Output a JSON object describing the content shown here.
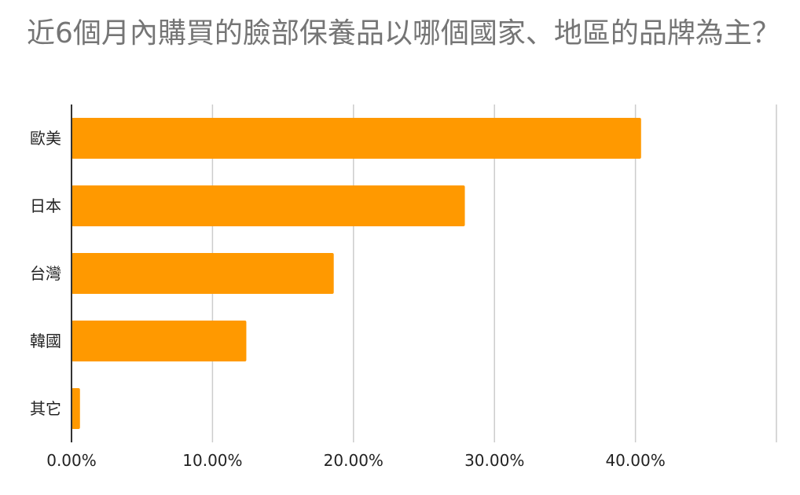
{
  "chart_data": {
    "type": "bar",
    "orientation": "horizontal",
    "title": "近6個月內購買的臉部保養品以哪個國家、地區的品牌為主？",
    "categories": [
      "歐美",
      "日本",
      "台灣",
      "韓國",
      "其它"
    ],
    "series": [
      {
        "values": [
          40.4,
          27.9,
          18.6,
          12.4,
          0.6
        ]
      }
    ],
    "xlim": [
      0,
      50
    ],
    "xticks": [
      0,
      10,
      20,
      30,
      40
    ],
    "xtick_labels": [
      "0.00%",
      "10.00%",
      "20.00%",
      "30.00%",
      "40.00%"
    ],
    "xlabel": "",
    "ylabel": "",
    "grid": true,
    "legend": "none",
    "bar_color": "#ff9900",
    "grid_color": "#cccccc",
    "axis_color": "#333333"
  }
}
